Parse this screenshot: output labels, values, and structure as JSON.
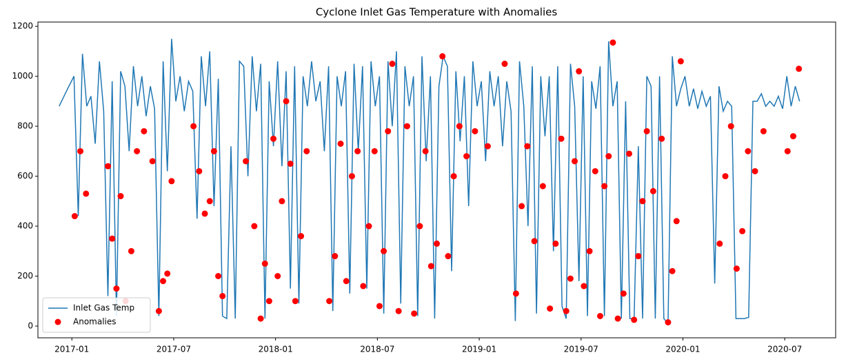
{
  "chart_data": {
    "type": "line",
    "title": "Cyclone Inlet Gas Temperature with Anomalies",
    "xlim": [
      "2016-11",
      "2020-10"
    ],
    "xticks": [
      "2017-01",
      "2017-07",
      "2018-01",
      "2018-07",
      "2019-01",
      "2019-07",
      "2020-01",
      "2020-07"
    ],
    "ylim": [
      -47,
      1217
    ],
    "yticks": [
      0,
      200,
      400,
      600,
      800,
      1000,
      1200
    ],
    "legend": "lower left",
    "series": [
      {
        "name": "Inlet Gas Temp",
        "type": "line",
        "color": "#1f77b4",
        "x": [
          "2016-12",
          "2016-12",
          "2017-01",
          "2017-01",
          "2017-01",
          "2017-01",
          "2017-02",
          "2017-02",
          "2017-02",
          "2017-02",
          "2017-03",
          "2017-03",
          "2017-03",
          "2017-03",
          "2017-04",
          "2017-04",
          "2017-04",
          "2017-04",
          "2017-05",
          "2017-05",
          "2017-05",
          "2017-05",
          "2017-06",
          "2017-06",
          "2017-06",
          "2017-06",
          "2017-07",
          "2017-07",
          "2017-07",
          "2017-07",
          "2017-08",
          "2017-08",
          "2017-08",
          "2017-08",
          "2017-09",
          "2017-09",
          "2017-09",
          "2017-09",
          "2017-10",
          "2017-10",
          "2017-10",
          "2017-10",
          "2017-11",
          "2017-11",
          "2017-11",
          "2017-11",
          "2017-12",
          "2017-12",
          "2017-12",
          "2017-12",
          "2018-01",
          "2018-01",
          "2018-01",
          "2018-01",
          "2018-02",
          "2018-02",
          "2018-02",
          "2018-02",
          "2018-03",
          "2018-03",
          "2018-03",
          "2018-03",
          "2018-04",
          "2018-04",
          "2018-04",
          "2018-04",
          "2018-05",
          "2018-05",
          "2018-05",
          "2018-05",
          "2018-06",
          "2018-06",
          "2018-06",
          "2018-06",
          "2018-07",
          "2018-07",
          "2018-07",
          "2018-07",
          "2018-08",
          "2018-08",
          "2018-08",
          "2018-08",
          "2018-09",
          "2018-09",
          "2018-09",
          "2018-09",
          "2018-10",
          "2018-10",
          "2018-10",
          "2018-10",
          "2018-11",
          "2018-11",
          "2018-11",
          "2018-11",
          "2018-12",
          "2018-12",
          "2018-12",
          "2018-12",
          "2019-01",
          "2019-01",
          "2019-01",
          "2019-01",
          "2019-02",
          "2019-02",
          "2019-02",
          "2019-02",
          "2019-03",
          "2019-03",
          "2019-03",
          "2019-03",
          "2019-04",
          "2019-04",
          "2019-04",
          "2019-04",
          "2019-05",
          "2019-05",
          "2019-05",
          "2019-05",
          "2019-06",
          "2019-06",
          "2019-06",
          "2019-06",
          "2019-07",
          "2019-07",
          "2019-07",
          "2019-07",
          "2019-08",
          "2019-08",
          "2019-08",
          "2019-08",
          "2019-09",
          "2019-09",
          "2019-09",
          "2019-09",
          "2019-10",
          "2019-10",
          "2019-10",
          "2019-10",
          "2019-11",
          "2019-11",
          "2019-11",
          "2019-11",
          "2019-12",
          "2019-12",
          "2019-12",
          "2019-12",
          "2020-01",
          "2020-01",
          "2020-01",
          "2020-01",
          "2020-02",
          "2020-02",
          "2020-02",
          "2020-02",
          "2020-03",
          "2020-03",
          "2020-03",
          "2020-03",
          "2020-04",
          "2020-04",
          "2020-04",
          "2020-04",
          "2020-05",
          "2020-05",
          "2020-05",
          "2020-05",
          "2020-06",
          "2020-06",
          "2020-06",
          "2020-06",
          "2020-07",
          "2020-07",
          "2020-07",
          "2020-07"
        ],
        "values": [
          880,
          950,
          1000,
          440,
          1090,
          880,
          920,
          730,
          1060,
          860,
          120,
          980,
          40,
          1020,
          960,
          700,
          1040,
          880,
          1000,
          840,
          960,
          870,
          40,
          1060,
          620,
          1150,
          900,
          1000,
          860,
          980,
          940,
          430,
          1080,
          880,
          1100,
          480,
          990,
          40,
          30,
          720,
          30,
          1060,
          1040,
          600,
          1080,
          860,
          1050,
          30,
          980,
          720,
          1060,
          640,
          1020,
          150,
          1040,
          90,
          1000,
          880,
          1060,
          900,
          980,
          700,
          1040,
          60,
          1000,
          880,
          1020,
          130,
          1050,
          700,
          1040,
          150,
          1060,
          880,
          1000,
          50,
          1060,
          800,
          1100,
          90,
          1040,
          880,
          1000,
          40,
          1080,
          660,
          1000,
          30,
          960,
          1080,
          1040,
          220,
          1020,
          740,
          1000,
          480,
          1060,
          880,
          980,
          660,
          1020,
          880,
          1000,
          720,
          980,
          860,
          20,
          1060,
          880,
          400,
          1040,
          50,
          1000,
          760,
          1000,
          300,
          1040,
          80,
          30,
          1050,
          880,
          180,
          1000,
          40,
          980,
          870,
          1040,
          40,
          1140,
          880,
          980,
          30,
          900,
          30,
          30,
          720,
          30,
          1000,
          960,
          30,
          1000,
          30,
          10,
          1080,
          880,
          950,
          1000,
          880,
          950,
          870,
          940,
          880,
          920,
          170,
          960,
          860,
          900,
          880,
          30,
          30,
          30,
          35,
          900,
          900,
          930,
          880,
          900,
          880,
          920,
          870,
          1000,
          880,
          960,
          900
        ]
      },
      {
        "name": "Anomalies",
        "type": "scatter",
        "color": "#ff0000",
        "x": [
          "2017-01",
          "2017-01",
          "2017-01",
          "2017-03",
          "2017-03",
          "2017-03",
          "2017-03",
          "2017-04",
          "2017-04",
          "2017-04",
          "2017-05",
          "2017-05",
          "2017-06",
          "2017-06",
          "2017-06",
          "2017-06",
          "2017-08",
          "2017-08",
          "2017-08",
          "2017-09",
          "2017-09",
          "2017-09",
          "2017-09",
          "2017-11",
          "2017-11",
          "2017-12",
          "2017-12",
          "2017-12",
          "2017-12",
          "2018-01",
          "2018-01",
          "2018-01",
          "2018-01",
          "2018-02",
          "2018-02",
          "2018-02",
          "2018-04",
          "2018-04",
          "2018-04",
          "2018-05",
          "2018-05",
          "2018-05",
          "2018-06",
          "2018-06",
          "2018-06",
          "2018-07",
          "2018-07",
          "2018-07",
          "2018-07",
          "2018-08",
          "2018-08",
          "2018-09",
          "2018-09",
          "2018-09",
          "2018-10",
          "2018-10",
          "2018-10",
          "2018-11",
          "2018-11",
          "2018-11",
          "2018-12",
          "2018-12",
          "2019-01",
          "2019-02",
          "2019-03",
          "2019-03",
          "2019-03",
          "2019-04",
          "2019-04",
          "2019-05",
          "2019-05",
          "2019-05",
          "2019-06",
          "2019-06",
          "2019-06",
          "2019-06",
          "2019-07",
          "2019-07",
          "2019-07",
          "2019-08",
          "2019-08",
          "2019-08",
          "2019-08",
          "2019-09",
          "2019-09",
          "2019-09",
          "2019-10",
          "2019-10",
          "2019-10",
          "2019-10",
          "2019-11",
          "2019-11",
          "2019-12",
          "2019-12",
          "2019-12",
          "2019-12",
          "2020-03",
          "2020-03",
          "2020-03",
          "2020-04",
          "2020-04",
          "2020-04",
          "2020-05",
          "2020-05",
          "2020-07",
          "2020-07",
          "2020-07"
        ],
        "values": [
          440,
          700,
          530,
          640,
          350,
          150,
          520,
          100,
          300,
          700,
          780,
          660,
          60,
          180,
          210,
          580,
          800,
          620,
          450,
          500,
          700,
          200,
          120,
          660,
          400,
          30,
          250,
          100,
          750,
          200,
          500,
          900,
          650,
          100,
          360,
          700,
          100,
          280,
          730,
          180,
          600,
          700,
          160,
          400,
          700,
          80,
          300,
          780,
          1050,
          60,
          800,
          50,
          400,
          700,
          240,
          330,
          1080,
          280,
          600,
          800,
          680,
          780,
          720,
          1050,
          130,
          480,
          720,
          340,
          560,
          70,
          330,
          750,
          60,
          190,
          660,
          1020,
          160,
          300,
          620,
          40,
          560,
          680,
          1135,
          30,
          130,
          690,
          25,
          280,
          500,
          780,
          540,
          750,
          15,
          220,
          420,
          1060,
          330,
          600,
          800,
          230,
          380,
          700,
          620,
          780,
          700,
          760,
          1030
        ]
      }
    ]
  }
}
